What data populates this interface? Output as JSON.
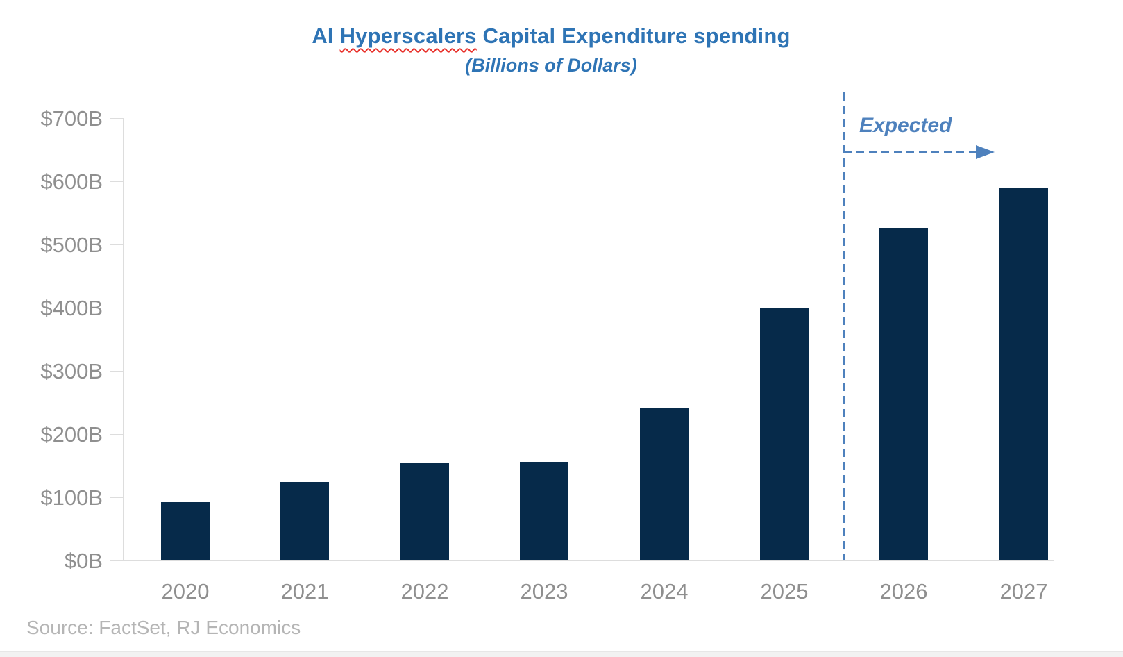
{
  "header": {
    "title_prefix": "AI ",
    "title_misspelled_word": "Hyperscalers",
    "title_suffix": " Capital Expenditure spending",
    "subtitle": "(Billions of Dollars)",
    "title_color": "#2E74B5",
    "spellcheck_underline_color": "#E8302A"
  },
  "footer": {
    "source": "Source: FactSet, RJ Economics"
  },
  "chart_data": {
    "type": "bar",
    "title": "AI Hyperscalers Capital Expenditure spending",
    "subtitle": "(Billions of Dollars)",
    "categories": [
      "2020",
      "2021",
      "2022",
      "2023",
      "2024",
      "2025",
      "2026",
      "2027"
    ],
    "values": [
      92,
      124,
      155,
      156,
      242,
      400,
      525,
      590
    ],
    "unit": "billions of dollars",
    "ylim": [
      0,
      700
    ],
    "y_tick_interval": 100,
    "y_tick_labels": [
      "$0B",
      "$100B",
      "$200B",
      "$300B",
      "$400B",
      "$500B",
      "$600B",
      "$700B"
    ],
    "grid": false,
    "legend": "none",
    "bar_color": "#062A4A",
    "axis_color": "#DDDDDD",
    "label_color": "#8F8F8F",
    "expected_from_category": "2026",
    "annotation": {
      "label": "Expected",
      "color": "#4E81BD",
      "style": "dashed vertical divider before 2026 with dashed right arrow"
    }
  }
}
